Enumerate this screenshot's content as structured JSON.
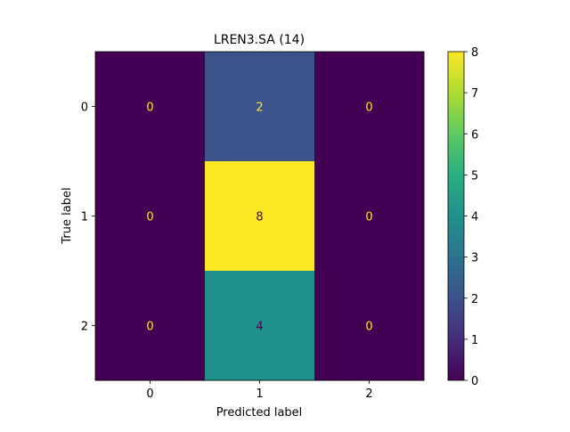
{
  "chart_data": {
    "type": "heatmap",
    "title": "LREN3.SA (14)",
    "xlabel": "Predicted label",
    "ylabel": "True label",
    "x_categories": [
      "0",
      "1",
      "2"
    ],
    "y_categories": [
      "0",
      "1",
      "2"
    ],
    "values": [
      [
        0,
        2,
        0
      ],
      [
        0,
        8,
        0
      ],
      [
        0,
        4,
        0
      ]
    ],
    "colormap": "viridis",
    "color_range": [
      0,
      8
    ],
    "colorbar_ticks": [
      "0",
      "1",
      "2",
      "3",
      "4",
      "5",
      "6",
      "7",
      "8"
    ],
    "annotation_colors": {
      "on_dark": "#fde725",
      "on_light": "#440154"
    }
  }
}
